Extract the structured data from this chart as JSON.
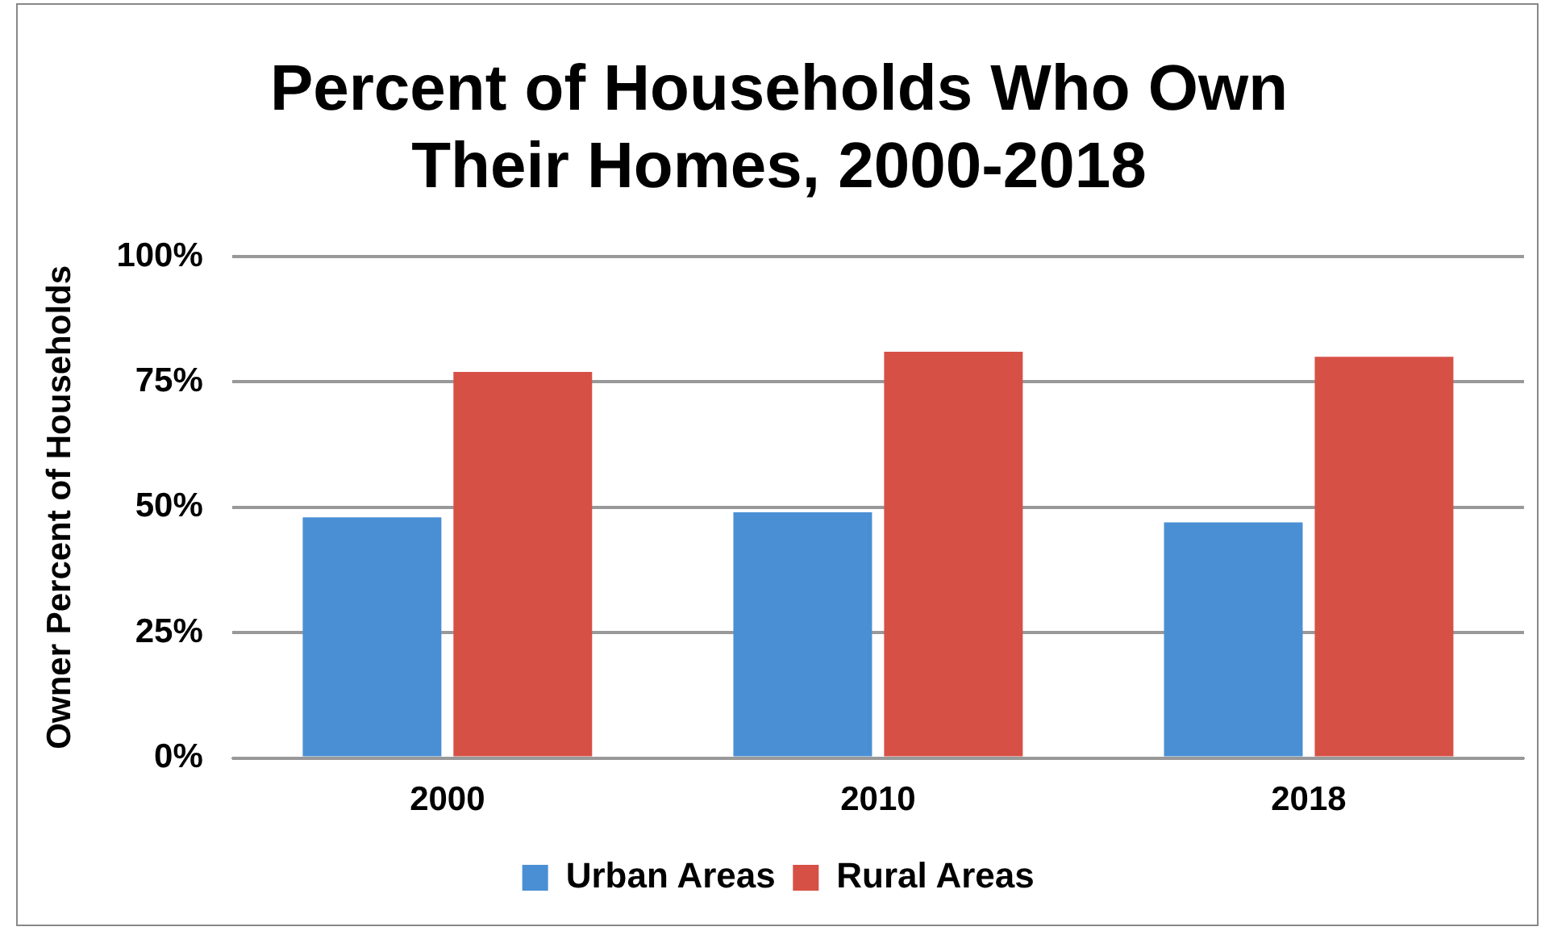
{
  "chart_data": {
    "type": "bar",
    "title": "Percent of Households Who Own Their Homes, 2000-2018",
    "ylabel": "Owner Percent of Households",
    "categories": [
      "2000",
      "2010",
      "2018"
    ],
    "series": [
      {
        "name": "Urban Areas",
        "color": "#4a8fd4",
        "values": [
          48,
          49,
          47
        ]
      },
      {
        "name": "Rural Areas",
        "color": "#d65046",
        "values": [
          77,
          81,
          80
        ]
      }
    ],
    "ylim": [
      0,
      100
    ],
    "yticks": [
      {
        "value": 0,
        "label": "0%"
      },
      {
        "value": 25,
        "label": "25%"
      },
      {
        "value": 50,
        "label": "50%"
      },
      {
        "value": 75,
        "label": "75%"
      },
      {
        "value": 100,
        "label": "100%"
      }
    ],
    "grid": "y",
    "legend": "bottom"
  }
}
